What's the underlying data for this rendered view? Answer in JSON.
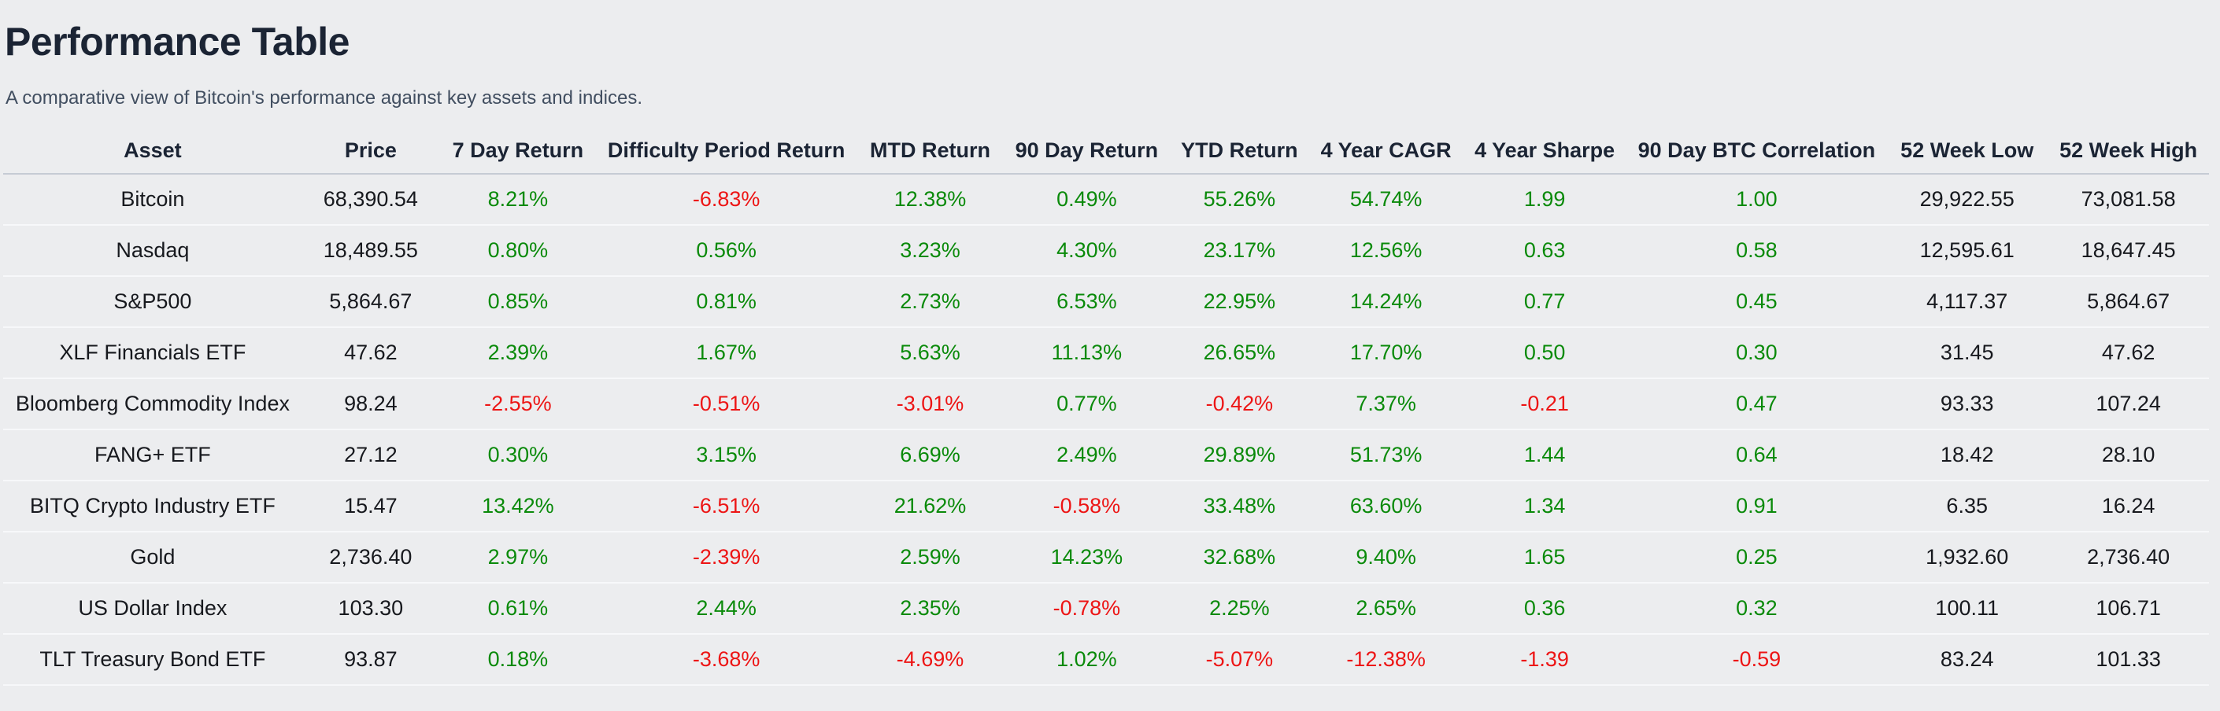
{
  "header": {
    "title": "Performance Table",
    "subtitle": "A comparative view of Bitcoin's performance against key assets and indices."
  },
  "colors": {
    "background": "#ECEDEF",
    "title_text": "#1b2434",
    "subtitle_text": "#414e60",
    "body_text": "#17191e",
    "positive": "#0a8a0a",
    "negative": "#ed1515",
    "header_divider": "#c6cbd4",
    "row_divider": "#f7f8fa"
  },
  "chart_data": {
    "type": "table",
    "title": "Performance Table",
    "columns": [
      "Asset",
      "Price",
      "7 Day Return",
      "Difficulty Period Return",
      "MTD Return",
      "90 Day Return",
      "YTD Return",
      "4 Year CAGR",
      "4 Year Sharpe",
      "90 Day BTC Correlation",
      "52 Week Low",
      "52 Week High"
    ],
    "colored_columns": [
      2,
      3,
      4,
      5,
      6,
      7,
      8,
      9
    ],
    "color_rule": "green if value is positive, red if value is negative",
    "rows": [
      [
        "Bitcoin",
        "68,390.54",
        "8.21%",
        "-6.83%",
        "12.38%",
        "0.49%",
        "55.26%",
        "54.74%",
        "1.99",
        "1.00",
        "29,922.55",
        "73,081.58"
      ],
      [
        "Nasdaq",
        "18,489.55",
        "0.80%",
        "0.56%",
        "3.23%",
        "4.30%",
        "23.17%",
        "12.56%",
        "0.63",
        "0.58",
        "12,595.61",
        "18,647.45"
      ],
      [
        "S&P500",
        "5,864.67",
        "0.85%",
        "0.81%",
        "2.73%",
        "6.53%",
        "22.95%",
        "14.24%",
        "0.77",
        "0.45",
        "4,117.37",
        "5,864.67"
      ],
      [
        "XLF Financials ETF",
        "47.62",
        "2.39%",
        "1.67%",
        "5.63%",
        "11.13%",
        "26.65%",
        "17.70%",
        "0.50",
        "0.30",
        "31.45",
        "47.62"
      ],
      [
        "Bloomberg Commodity Index",
        "98.24",
        "-2.55%",
        "-0.51%",
        "-3.01%",
        "0.77%",
        "-0.42%",
        "7.37%",
        "-0.21",
        "0.47",
        "93.33",
        "107.24"
      ],
      [
        "FANG+ ETF",
        "27.12",
        "0.30%",
        "3.15%",
        "6.69%",
        "2.49%",
        "29.89%",
        "51.73%",
        "1.44",
        "0.64",
        "18.42",
        "28.10"
      ],
      [
        "BITQ Crypto Industry ETF",
        "15.47",
        "13.42%",
        "-6.51%",
        "21.62%",
        "-0.58%",
        "33.48%",
        "63.60%",
        "1.34",
        "0.91",
        "6.35",
        "16.24"
      ],
      [
        "Gold",
        "2,736.40",
        "2.97%",
        "-2.39%",
        "2.59%",
        "14.23%",
        "32.68%",
        "9.40%",
        "1.65",
        "0.25",
        "1,932.60",
        "2,736.40"
      ],
      [
        "US Dollar Index",
        "103.30",
        "0.61%",
        "2.44%",
        "2.35%",
        "-0.78%",
        "2.25%",
        "2.65%",
        "0.36",
        "0.32",
        "100.11",
        "106.71"
      ],
      [
        "TLT Treasury Bond ETF",
        "93.87",
        "0.18%",
        "-3.68%",
        "-4.69%",
        "1.02%",
        "-5.07%",
        "-12.38%",
        "-1.39",
        "-0.59",
        "83.24",
        "101.33"
      ]
    ]
  }
}
